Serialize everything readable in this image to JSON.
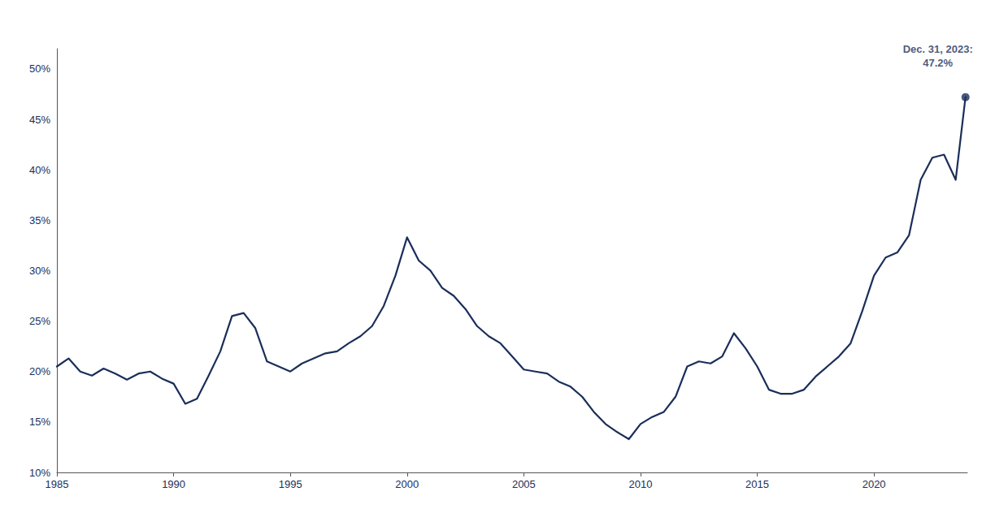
{
  "chart_data": {
    "type": "line",
    "color": "#1a2e5a",
    "x": [
      1985.0,
      1985.5,
      1986.0,
      1986.5,
      1987.0,
      1987.5,
      1988.0,
      1988.5,
      1989.0,
      1989.5,
      1990.0,
      1990.5,
      1991.0,
      1991.5,
      1992.0,
      1992.5,
      1993.0,
      1993.5,
      1994.0,
      1994.5,
      1995.0,
      1995.5,
      1996.0,
      1996.5,
      1997.0,
      1997.5,
      1998.0,
      1998.5,
      1999.0,
      1999.5,
      2000.0,
      2000.5,
      2001.0,
      2001.5,
      2002.0,
      2002.5,
      2003.0,
      2003.5,
      2004.0,
      2004.5,
      2005.0,
      2005.5,
      2006.0,
      2006.5,
      2007.0,
      2007.5,
      2008.0,
      2008.5,
      2009.0,
      2009.5,
      2010.0,
      2010.5,
      2011.0,
      2011.5,
      2012.0,
      2012.5,
      2013.0,
      2013.5,
      2014.0,
      2014.5,
      2015.0,
      2015.5,
      2016.0,
      2016.5,
      2017.0,
      2017.5,
      2018.0,
      2018.5,
      2019.0,
      2019.5,
      2020.0,
      2020.5,
      2021.0,
      2021.5,
      2022.0,
      2022.5,
      2023.0,
      2023.5,
      2023.92
    ],
    "values": [
      0.205,
      0.213,
      0.2,
      0.196,
      0.203,
      0.198,
      0.192,
      0.198,
      0.2,
      0.193,
      0.188,
      0.168,
      0.173,
      0.196,
      0.22,
      0.255,
      0.258,
      0.243,
      0.21,
      0.205,
      0.2,
      0.208,
      0.213,
      0.218,
      0.22,
      0.228,
      0.235,
      0.245,
      0.265,
      0.295,
      0.333,
      0.31,
      0.3,
      0.283,
      0.275,
      0.262,
      0.245,
      0.235,
      0.228,
      0.215,
      0.202,
      0.2,
      0.198,
      0.19,
      0.185,
      0.175,
      0.16,
      0.148,
      0.14,
      0.133,
      0.148,
      0.155,
      0.16,
      0.175,
      0.205,
      0.21,
      0.208,
      0.215,
      0.238,
      0.223,
      0.205,
      0.182,
      0.178,
      0.178,
      0.182,
      0.195,
      0.205,
      0.215,
      0.228,
      0.26,
      0.295,
      0.313,
      0.318,
      0.335,
      0.39,
      0.412,
      0.415,
      0.39,
      0.472
    ],
    "xlim": [
      1985,
      2024
    ],
    "xticks": [
      1985,
      1990,
      1995,
      2000,
      2005,
      2010,
      2015,
      2020
    ],
    "ylim": [
      0.1,
      0.52
    ],
    "yticks": [
      {
        "value": 0.1,
        "label": "10%"
      },
      {
        "value": 0.15,
        "label": "15%"
      },
      {
        "value": 0.2,
        "label": "20%"
      },
      {
        "value": 0.25,
        "label": "25%"
      },
      {
        "value": 0.3,
        "label": "30%"
      },
      {
        "value": 0.35,
        "label": "35%"
      },
      {
        "value": 0.4,
        "label": "40%"
      },
      {
        "value": 0.45,
        "label": "45%"
      },
      {
        "value": 0.5,
        "label": "50%"
      }
    ],
    "annotations": [
      {
        "text": "Dec. 31, 2023:\n47.2%",
        "x": 2023.92,
        "y": 0.472
      }
    ],
    "grid": false
  }
}
